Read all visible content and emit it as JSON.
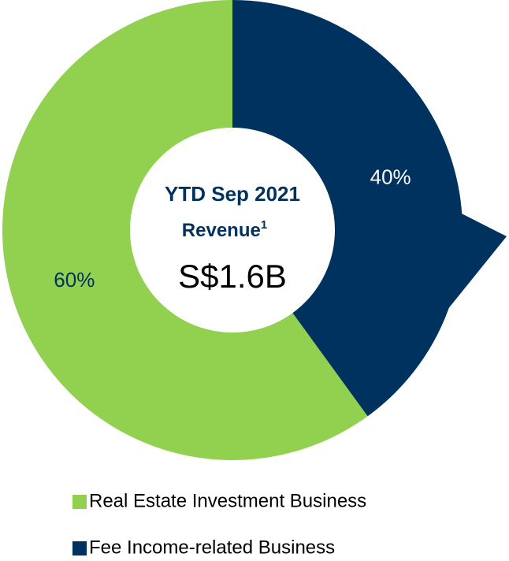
{
  "chart_data": {
    "type": "pie",
    "categories": [
      "Real Estate Investment Business",
      "Fee Income-related Business"
    ],
    "values": [
      60,
      40
    ],
    "value_labels": [
      "60%",
      "40%"
    ],
    "colors": [
      "#92d050",
      "#00325f"
    ],
    "value_label_colors": [
      "#00325f",
      "#ffffff"
    ],
    "center_title": "YTD Sep 2021",
    "center_subtitle": "Revenue",
    "center_footnote": "1",
    "center_value": "S$1.6B",
    "legend": "bottom"
  }
}
